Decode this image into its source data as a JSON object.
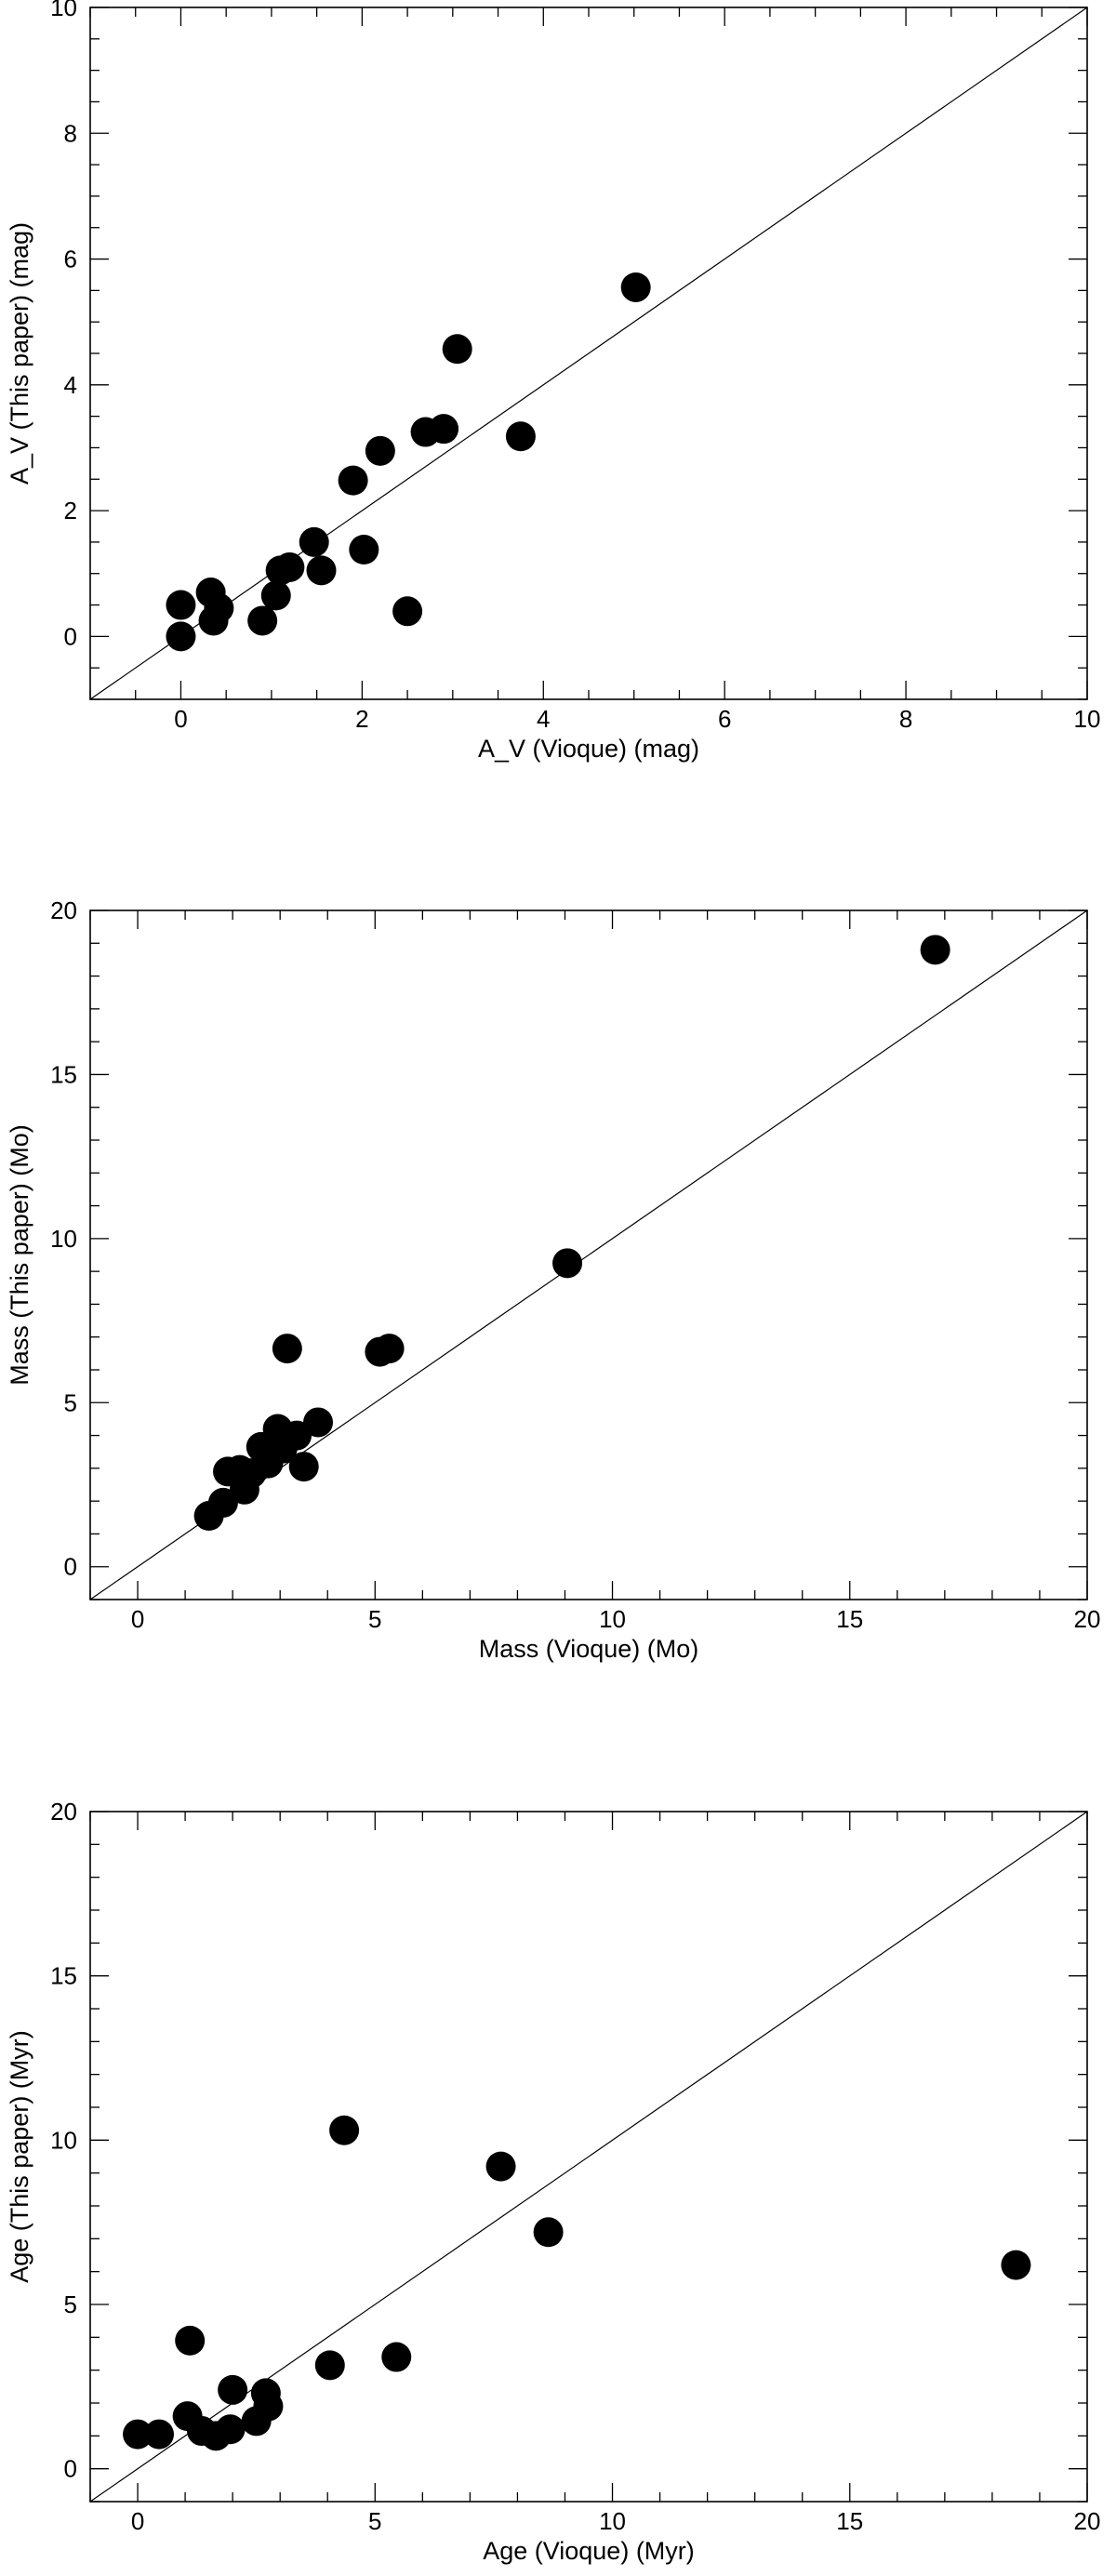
{
  "chart_data": [
    {
      "type": "scatter",
      "xlabel": "A_V (Vioque) (mag)",
      "ylabel": "A_V (This paper) (mag)",
      "xlim": [
        -1,
        10
      ],
      "ylim": [
        -1,
        10
      ],
      "xticks": [
        0,
        2,
        4,
        6,
        8,
        10
      ],
      "yticks": [
        0,
        2,
        4,
        6,
        8,
        10
      ],
      "xtick_labels": [
        "0",
        "2",
        "4",
        "6",
        "8",
        "10"
      ],
      "ytick_labels": [
        "0",
        "2",
        "4",
        "6",
        "8",
        "10"
      ],
      "minor_step": 0.5,
      "reference_line": "y = x",
      "grid": false,
      "series": [
        {
          "points": [
            [
              0.0,
              0.5
            ],
            [
              0.0,
              0.0
            ],
            [
              0.33,
              0.7
            ],
            [
              0.42,
              0.45
            ],
            [
              0.36,
              0.25
            ],
            [
              0.9,
              0.25
            ],
            [
              1.05,
              0.65
            ],
            [
              1.1,
              1.05
            ],
            [
              1.2,
              1.1
            ],
            [
              1.47,
              1.5
            ],
            [
              1.55,
              1.05
            ],
            [
              2.02,
              1.38
            ],
            [
              1.9,
              2.48
            ],
            [
              2.2,
              2.95
            ],
            [
              2.5,
              0.4
            ],
            [
              2.7,
              3.25
            ],
            [
              2.9,
              3.3
            ],
            [
              3.05,
              4.57
            ],
            [
              3.75,
              3.18
            ],
            [
              5.02,
              5.55
            ]
          ]
        }
      ]
    },
    {
      "type": "scatter",
      "xlabel": "Mass (Vioque) (Mo)",
      "ylabel": "Mass (This paper) (Mo)",
      "xlim": [
        -1,
        20
      ],
      "ylim": [
        -1,
        20
      ],
      "xticks": [
        0,
        5,
        10,
        15,
        20
      ],
      "yticks": [
        0,
        5,
        10,
        15,
        20
      ],
      "xtick_labels": [
        "0",
        "5",
        "10",
        "15",
        "20"
      ],
      "ytick_labels": [
        "0",
        "5",
        "10",
        "15",
        "20"
      ],
      "minor_step": 1,
      "reference_line": "y = x",
      "grid": false,
      "series": [
        {
          "points": [
            [
              1.5,
              1.55
            ],
            [
              1.8,
              1.95
            ],
            [
              1.9,
              2.9
            ],
            [
              2.15,
              2.95
            ],
            [
              2.25,
              2.35
            ],
            [
              2.4,
              2.85
            ],
            [
              2.6,
              3.65
            ],
            [
              2.75,
              3.15
            ],
            [
              2.95,
              4.2
            ],
            [
              3.05,
              3.6
            ],
            [
              3.35,
              4.0
            ],
            [
              3.5,
              3.05
            ],
            [
              3.15,
              6.65
            ],
            [
              3.8,
              4.4
            ],
            [
              5.1,
              6.55
            ],
            [
              5.3,
              6.65
            ],
            [
              9.05,
              9.25
            ],
            [
              16.8,
              18.8
            ]
          ]
        }
      ]
    },
    {
      "type": "scatter",
      "xlabel": "Age (Vioque) (Myr)",
      "ylabel": "Age (This paper) (Myr)",
      "xlim": [
        -1,
        20
      ],
      "ylim": [
        -1,
        20
      ],
      "xticks": [
        0,
        5,
        10,
        15,
        20
      ],
      "yticks": [
        0,
        5,
        10,
        15,
        20
      ],
      "xtick_labels": [
        "0",
        "5",
        "10",
        "15",
        "20"
      ],
      "ytick_labels": [
        "0",
        "5",
        "10",
        "15",
        "20"
      ],
      "minor_step": 1,
      "reference_line": "y = x",
      "grid": false,
      "series": [
        {
          "points": [
            [
              0.0,
              1.05
            ],
            [
              0.45,
              1.05
            ],
            [
              1.05,
              1.6
            ],
            [
              1.1,
              3.9
            ],
            [
              1.35,
              1.15
            ],
            [
              1.65,
              1.0
            ],
            [
              1.95,
              1.2
            ],
            [
              2.0,
              2.4
            ],
            [
              2.5,
              1.45
            ],
            [
              2.7,
              2.3
            ],
            [
              2.75,
              1.9
            ],
            [
              4.05,
              3.15
            ],
            [
              4.35,
              10.3
            ],
            [
              5.45,
              3.4
            ],
            [
              7.65,
              9.2
            ],
            [
              8.65,
              7.2
            ],
            [
              18.5,
              6.2
            ]
          ]
        }
      ]
    }
  ]
}
